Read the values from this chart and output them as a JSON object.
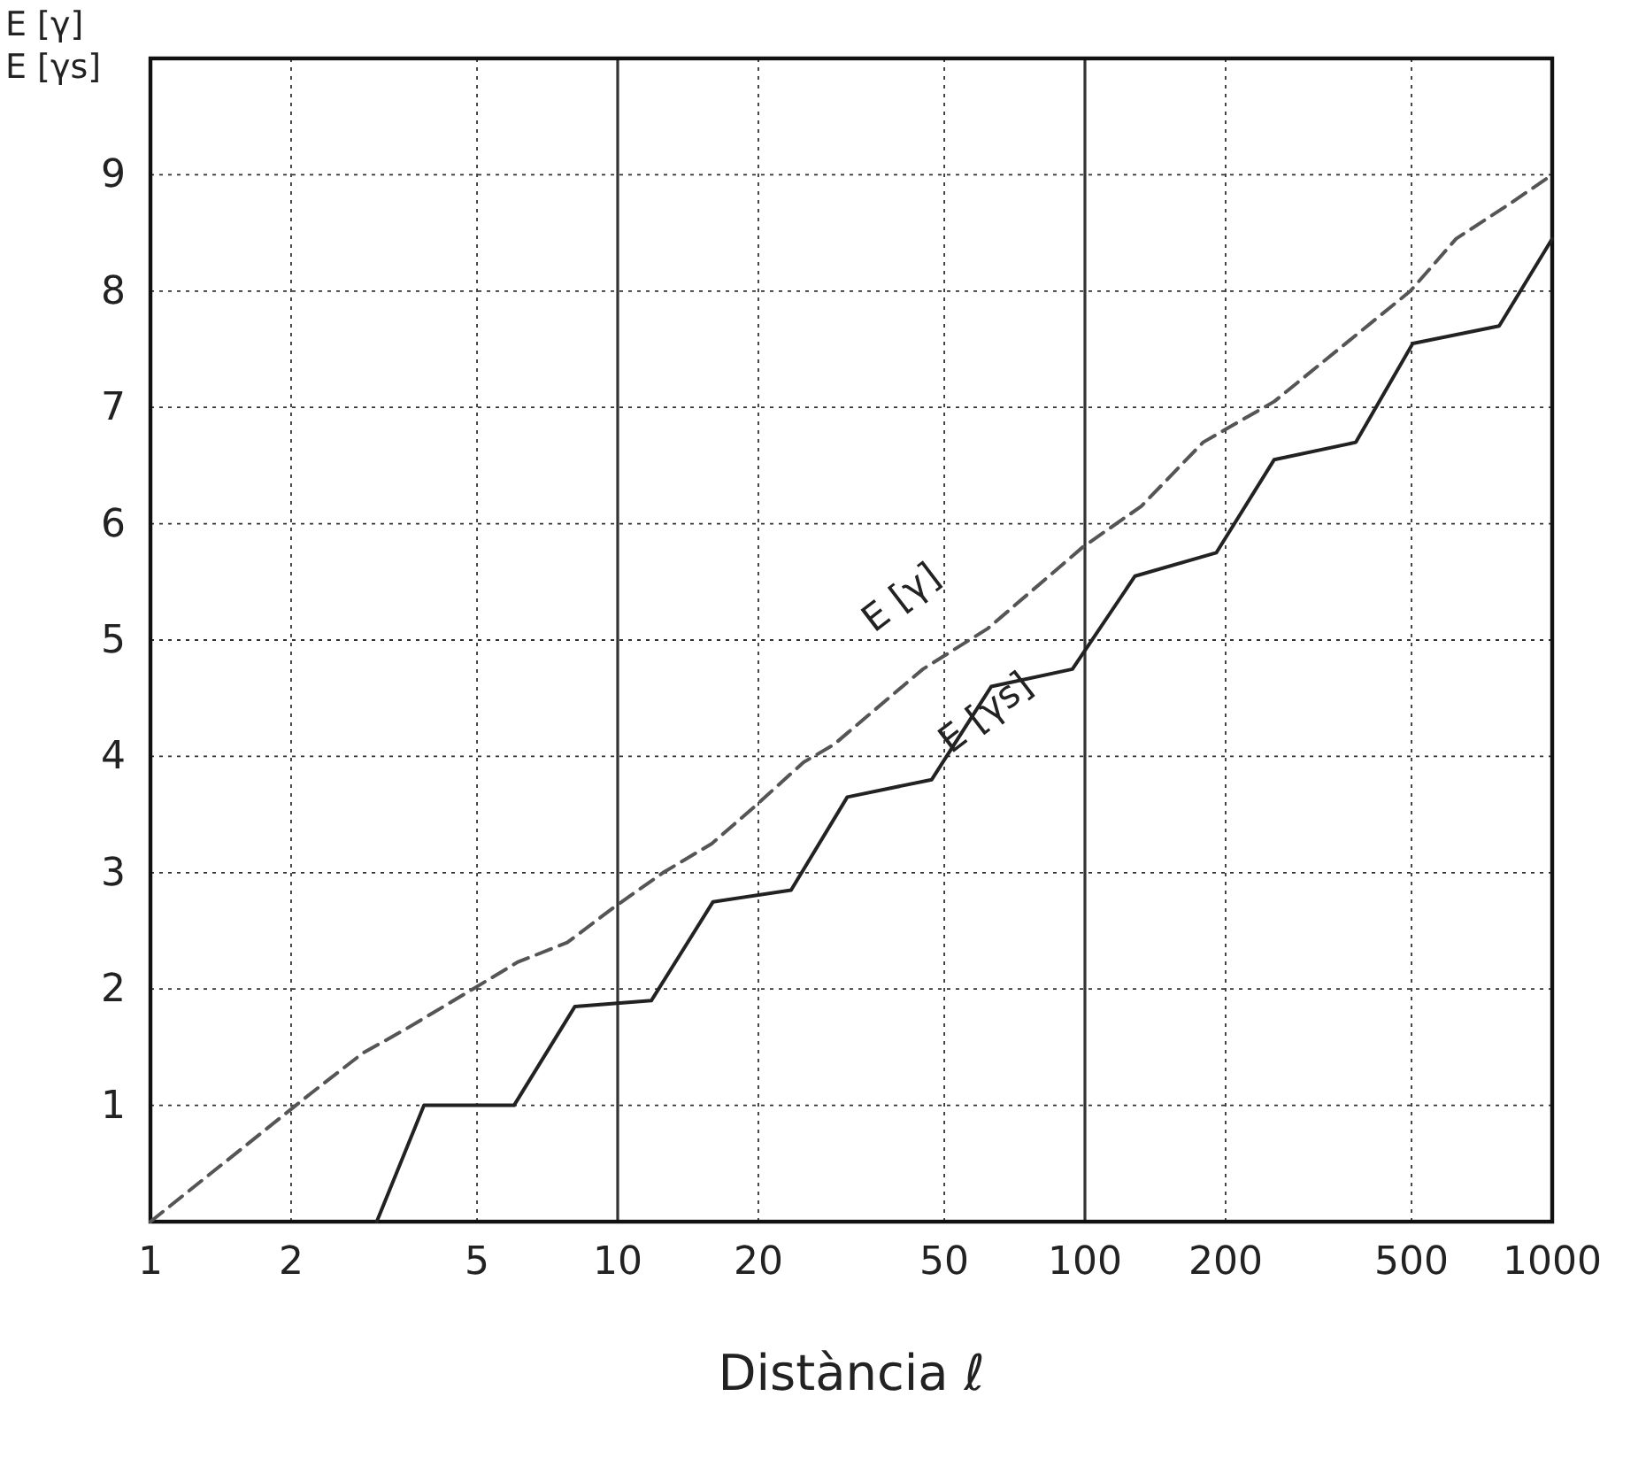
{
  "chart_data": {
    "type": "line",
    "xlabel": "Distància ℓ",
    "ylabel": "E [γ]\nE [γs]",
    "log": "x",
    "grid": true,
    "legend": false,
    "marker": "none",
    "xlim": [
      1,
      1000
    ],
    "ylim": [
      0,
      10
    ],
    "xticks": [
      1,
      2,
      5,
      10,
      20,
      50,
      100,
      200,
      500,
      1000
    ],
    "yticks": [
      1,
      2,
      3,
      4,
      5,
      6,
      7,
      8,
      9
    ],
    "series": [
      {
        "name": "E [γ]",
        "color": "#555555",
        "line_style": "dashed",
        "x": [
          1,
          2.2,
          2.85,
          3.5,
          4.9,
          6.1,
          7.8,
          9.8,
          12.5,
          15.9,
          19.4,
          25,
          29,
          31,
          45,
          62,
          99,
          132,
          179,
          254,
          497,
          623,
          811,
          1000
        ],
        "values": [
          0,
          1.1,
          1.45,
          1.65,
          2.0,
          2.23,
          2.4,
          2.7,
          3.0,
          3.25,
          3.55,
          3.95,
          4.1,
          4.2,
          4.75,
          5.1,
          5.8,
          6.15,
          6.7,
          7.05,
          8.0,
          8.45,
          8.75,
          9.0
        ]
      },
      {
        "name": "E [γs]",
        "color": "#222222",
        "line_style": "solid",
        "x": [
          3.05,
          3.85,
          6,
          8.1,
          11.8,
          16,
          23.5,
          31,
          47,
          63,
          94,
          128,
          191,
          254,
          380,
          503,
          770,
          1000
        ],
        "values": [
          0,
          1.0,
          1.0,
          1.85,
          1.9,
          2.75,
          2.85,
          3.65,
          3.8,
          4.6,
          4.75,
          5.55,
          5.75,
          6.55,
          6.7,
          7.55,
          7.7,
          8.45
        ]
      }
    ]
  }
}
